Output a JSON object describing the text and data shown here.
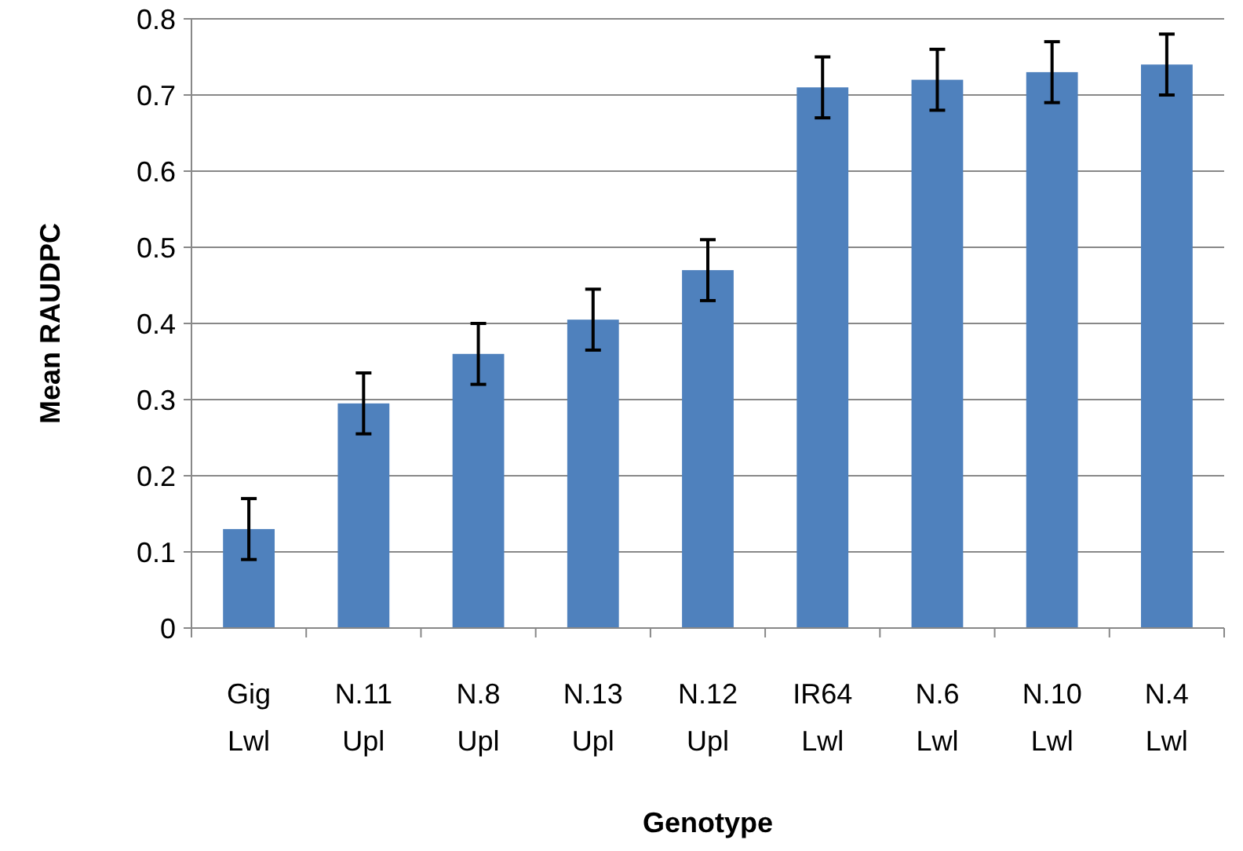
{
  "chart_data": {
    "type": "bar",
    "xlabel": "Genotype",
    "ylabel": "Mean RAUDPC",
    "categories": [
      "Gig\nLwl",
      "N.11\nUpl",
      "N.8\nUpl",
      "N.13\nUpl",
      "N.12\nUpl",
      "IR64\nLwl",
      "N.6\nLwl",
      "N.10\nLwl",
      "N.4\nLwl"
    ],
    "values": [
      0.13,
      0.295,
      0.36,
      0.405,
      0.47,
      0.71,
      0.72,
      0.73,
      0.74
    ],
    "errors": [
      0.04,
      0.04,
      0.04,
      0.04,
      0.04,
      0.04,
      0.04,
      0.04,
      0.04
    ],
    "color": "#4f81bd",
    "ylim": [
      0,
      0.8
    ],
    "yticks": [
      0,
      {
        "value": 0.1,
        "label": "0.1"
      },
      {
        "value": 0.2,
        "label": "0.2"
      },
      {
        "value": 0.3,
        "label": "0.3"
      },
      {
        "value": 0.4,
        "label": "0.4"
      },
      {
        "value": 0.5,
        "label": "0.5"
      },
      {
        "value": 0.6,
        "label": "0.6"
      },
      {
        "value": 0.7,
        "label": "0.7"
      },
      {
        "value": 0.8,
        "label": "0.8"
      }
    ],
    "grid": "y"
  }
}
